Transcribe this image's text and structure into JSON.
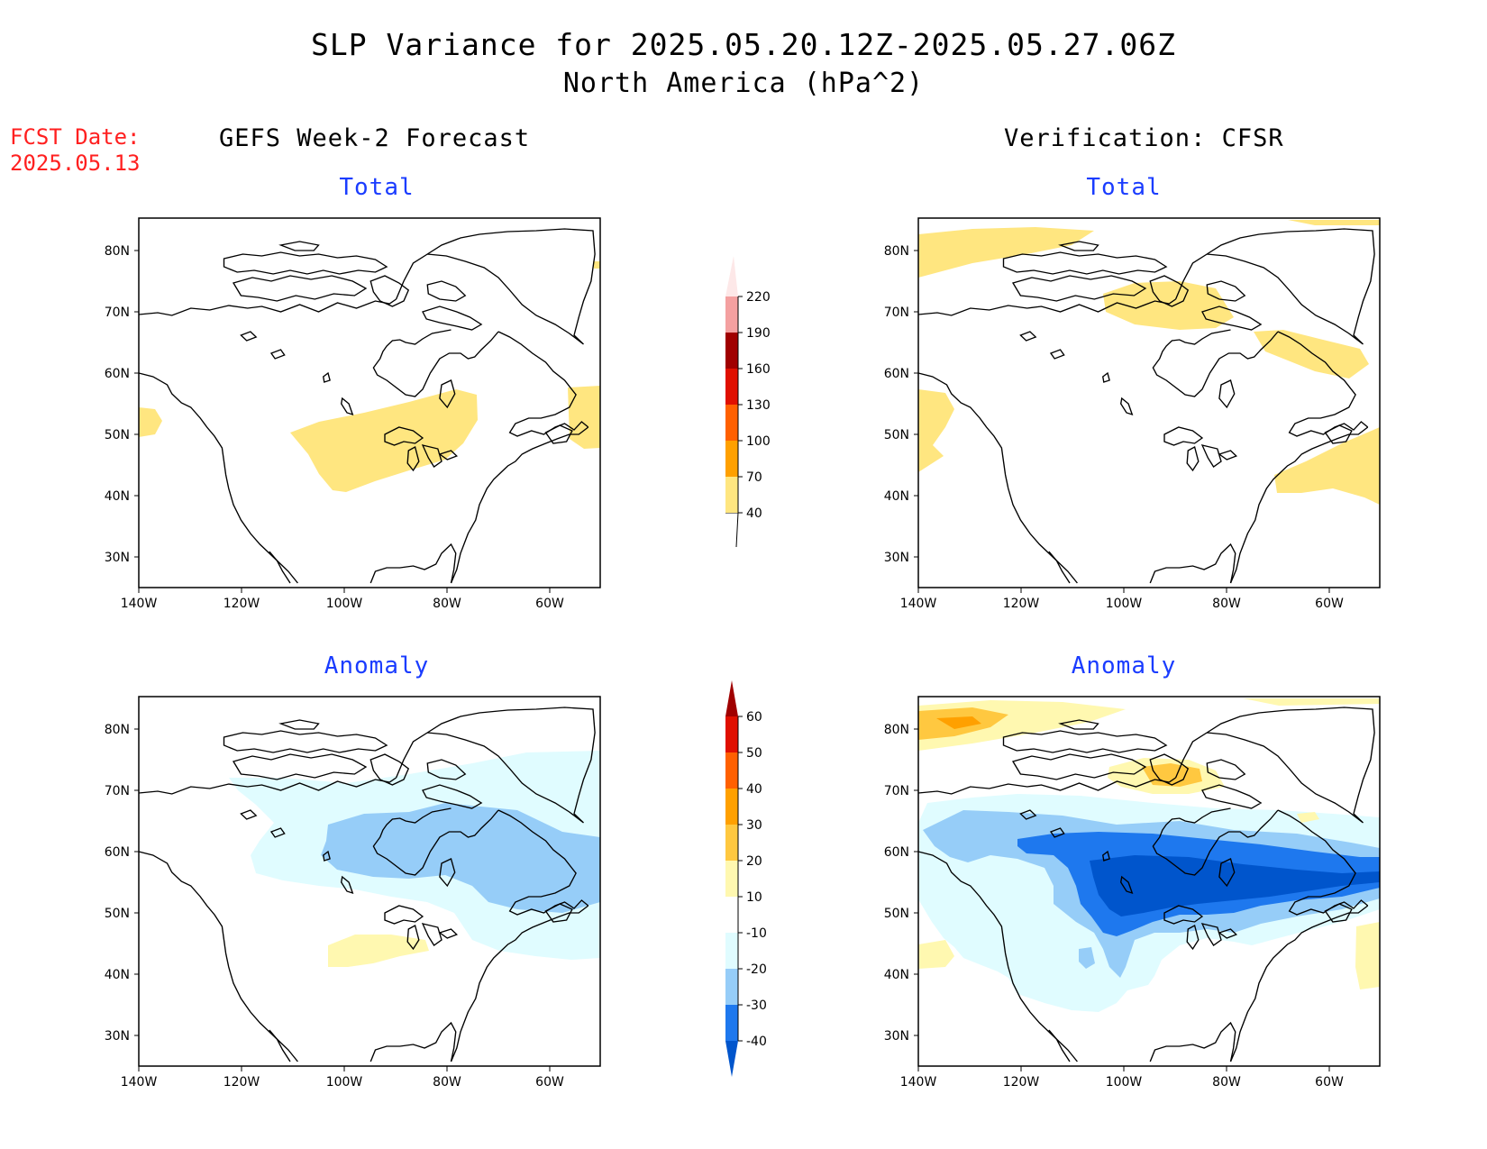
{
  "title": "SLP Variance for 2025.05.20.12Z-2025.05.27.06Z",
  "subtitle": "North America (hPa^2)",
  "fcst_date": {
    "label": "FCST Date:",
    "value": "2025.05.13"
  },
  "columns": {
    "left": "GEFS Week-2 Forecast",
    "right": "Verification: CFSR"
  },
  "panel_titles": {
    "total": "Total",
    "anomaly": "Anomaly"
  },
  "axes": {
    "lon_ticks": [
      "140W",
      "120W",
      "100W",
      "80W",
      "60W"
    ],
    "lat_ticks": [
      "80N",
      "70N",
      "60N",
      "50N",
      "40N",
      "30N"
    ]
  },
  "colorbar_total": {
    "levels": [
      "40",
      "70",
      "100",
      "130",
      "160",
      "190",
      "220"
    ],
    "colors": [
      "#ffe680",
      "#ffa000",
      "#ff6000",
      "#e01000",
      "#a00000",
      "#f4a0a0",
      "#fde8e8"
    ]
  },
  "colorbar_anomaly": {
    "levels": [
      "-40",
      "-30",
      "-20",
      "-10",
      "10",
      "20",
      "30",
      "40",
      "50",
      "60"
    ],
    "colors": [
      "#0055cc",
      "#1e78ee",
      "#96cdf8",
      "#e0fcff",
      "#ffffff",
      "#fff8b0",
      "#ffc840",
      "#ffa000",
      "#ff6000",
      "#e01000",
      "#a00000"
    ]
  },
  "legend_colors": {
    "yellow": "#ffe680",
    "light_yellow": "#fff8b0",
    "orange_light": "#ffc840",
    "orange": "#ffa000",
    "pale_cyan": "#e0fcff",
    "light_blue": "#96cdf8",
    "blue": "#1e78ee",
    "dark_blue": "#0055cc"
  }
}
